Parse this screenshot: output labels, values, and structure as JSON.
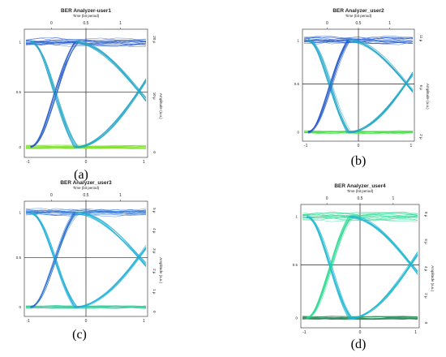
{
  "panels": [
    {
      "id": "a",
      "title": "BER Analyzer-user1",
      "subtitle": "Time (bit period)",
      "caption": "(a)",
      "top_ticks": [
        "0",
        "0.5",
        "1"
      ],
      "bottom_ticks": [
        "-1",
        "0",
        "1"
      ],
      "left_ticks": [
        "1",
        "0.5",
        "0"
      ],
      "right_ticks": [
        "20 μ",
        "10 μ",
        "0"
      ],
      "ylabel": "Amplitude (a.u.)",
      "colors": {
        "top": "#2258c8",
        "mid": "#22a6c8",
        "bottom": "#7fe02a"
      }
    },
    {
      "id": "b",
      "title": "BER Analyzer_user2",
      "subtitle": "Time (bit period)",
      "caption": "(b)",
      "top_ticks": [
        "0",
        "0.5",
        "1"
      ],
      "bottom_ticks": [
        "-1",
        "0",
        "1"
      ],
      "left_ticks": [
        "1",
        "0.5",
        "0"
      ],
      "right_ticks": [
        "11 μ",
        "6 μ",
        "2 μ"
      ],
      "ylabel": "Amplitude (a.u.)",
      "colors": {
        "top": "#2258c8",
        "mid": "#22a6c8",
        "bottom": "#4fe050"
      }
    },
    {
      "id": "c",
      "title": "BER Analyzer_user3",
      "subtitle": "Time (bit period)",
      "caption": "(c)",
      "top_ticks": [
        "0",
        "0.5",
        "1"
      ],
      "bottom_ticks": [
        "-1",
        "0",
        "1"
      ],
      "left_ticks": [
        "1",
        "0.5",
        "0"
      ],
      "right_ticks": [
        "5 μ",
        "4 μ",
        "3 μ",
        "2 μ",
        "1 μ",
        "0"
      ],
      "ylabel": "Amplitude (a.u.)",
      "colors": {
        "top": "#2a70d0",
        "mid": "#22b0d8",
        "bottom": "#34d0a0"
      }
    },
    {
      "id": "d",
      "title": "BER Analyzer_user4",
      "subtitle": "Time (bit period)",
      "caption": "(d)",
      "top_ticks": [
        "0",
        "0.5",
        "1"
      ],
      "bottom_ticks": [
        "-1",
        "0",
        "1"
      ],
      "left_ticks": [
        "1",
        "0.5",
        "0"
      ],
      "right_ticks": [
        "8 μ",
        "6 μ",
        "4 μ",
        "2 μ",
        "0"
      ],
      "ylabel": "Amplitude (a.u.)",
      "colors": {
        "top": "#2ad890",
        "mid": "#20b8d0",
        "bottom": "#2d8a5a"
      }
    }
  ]
}
